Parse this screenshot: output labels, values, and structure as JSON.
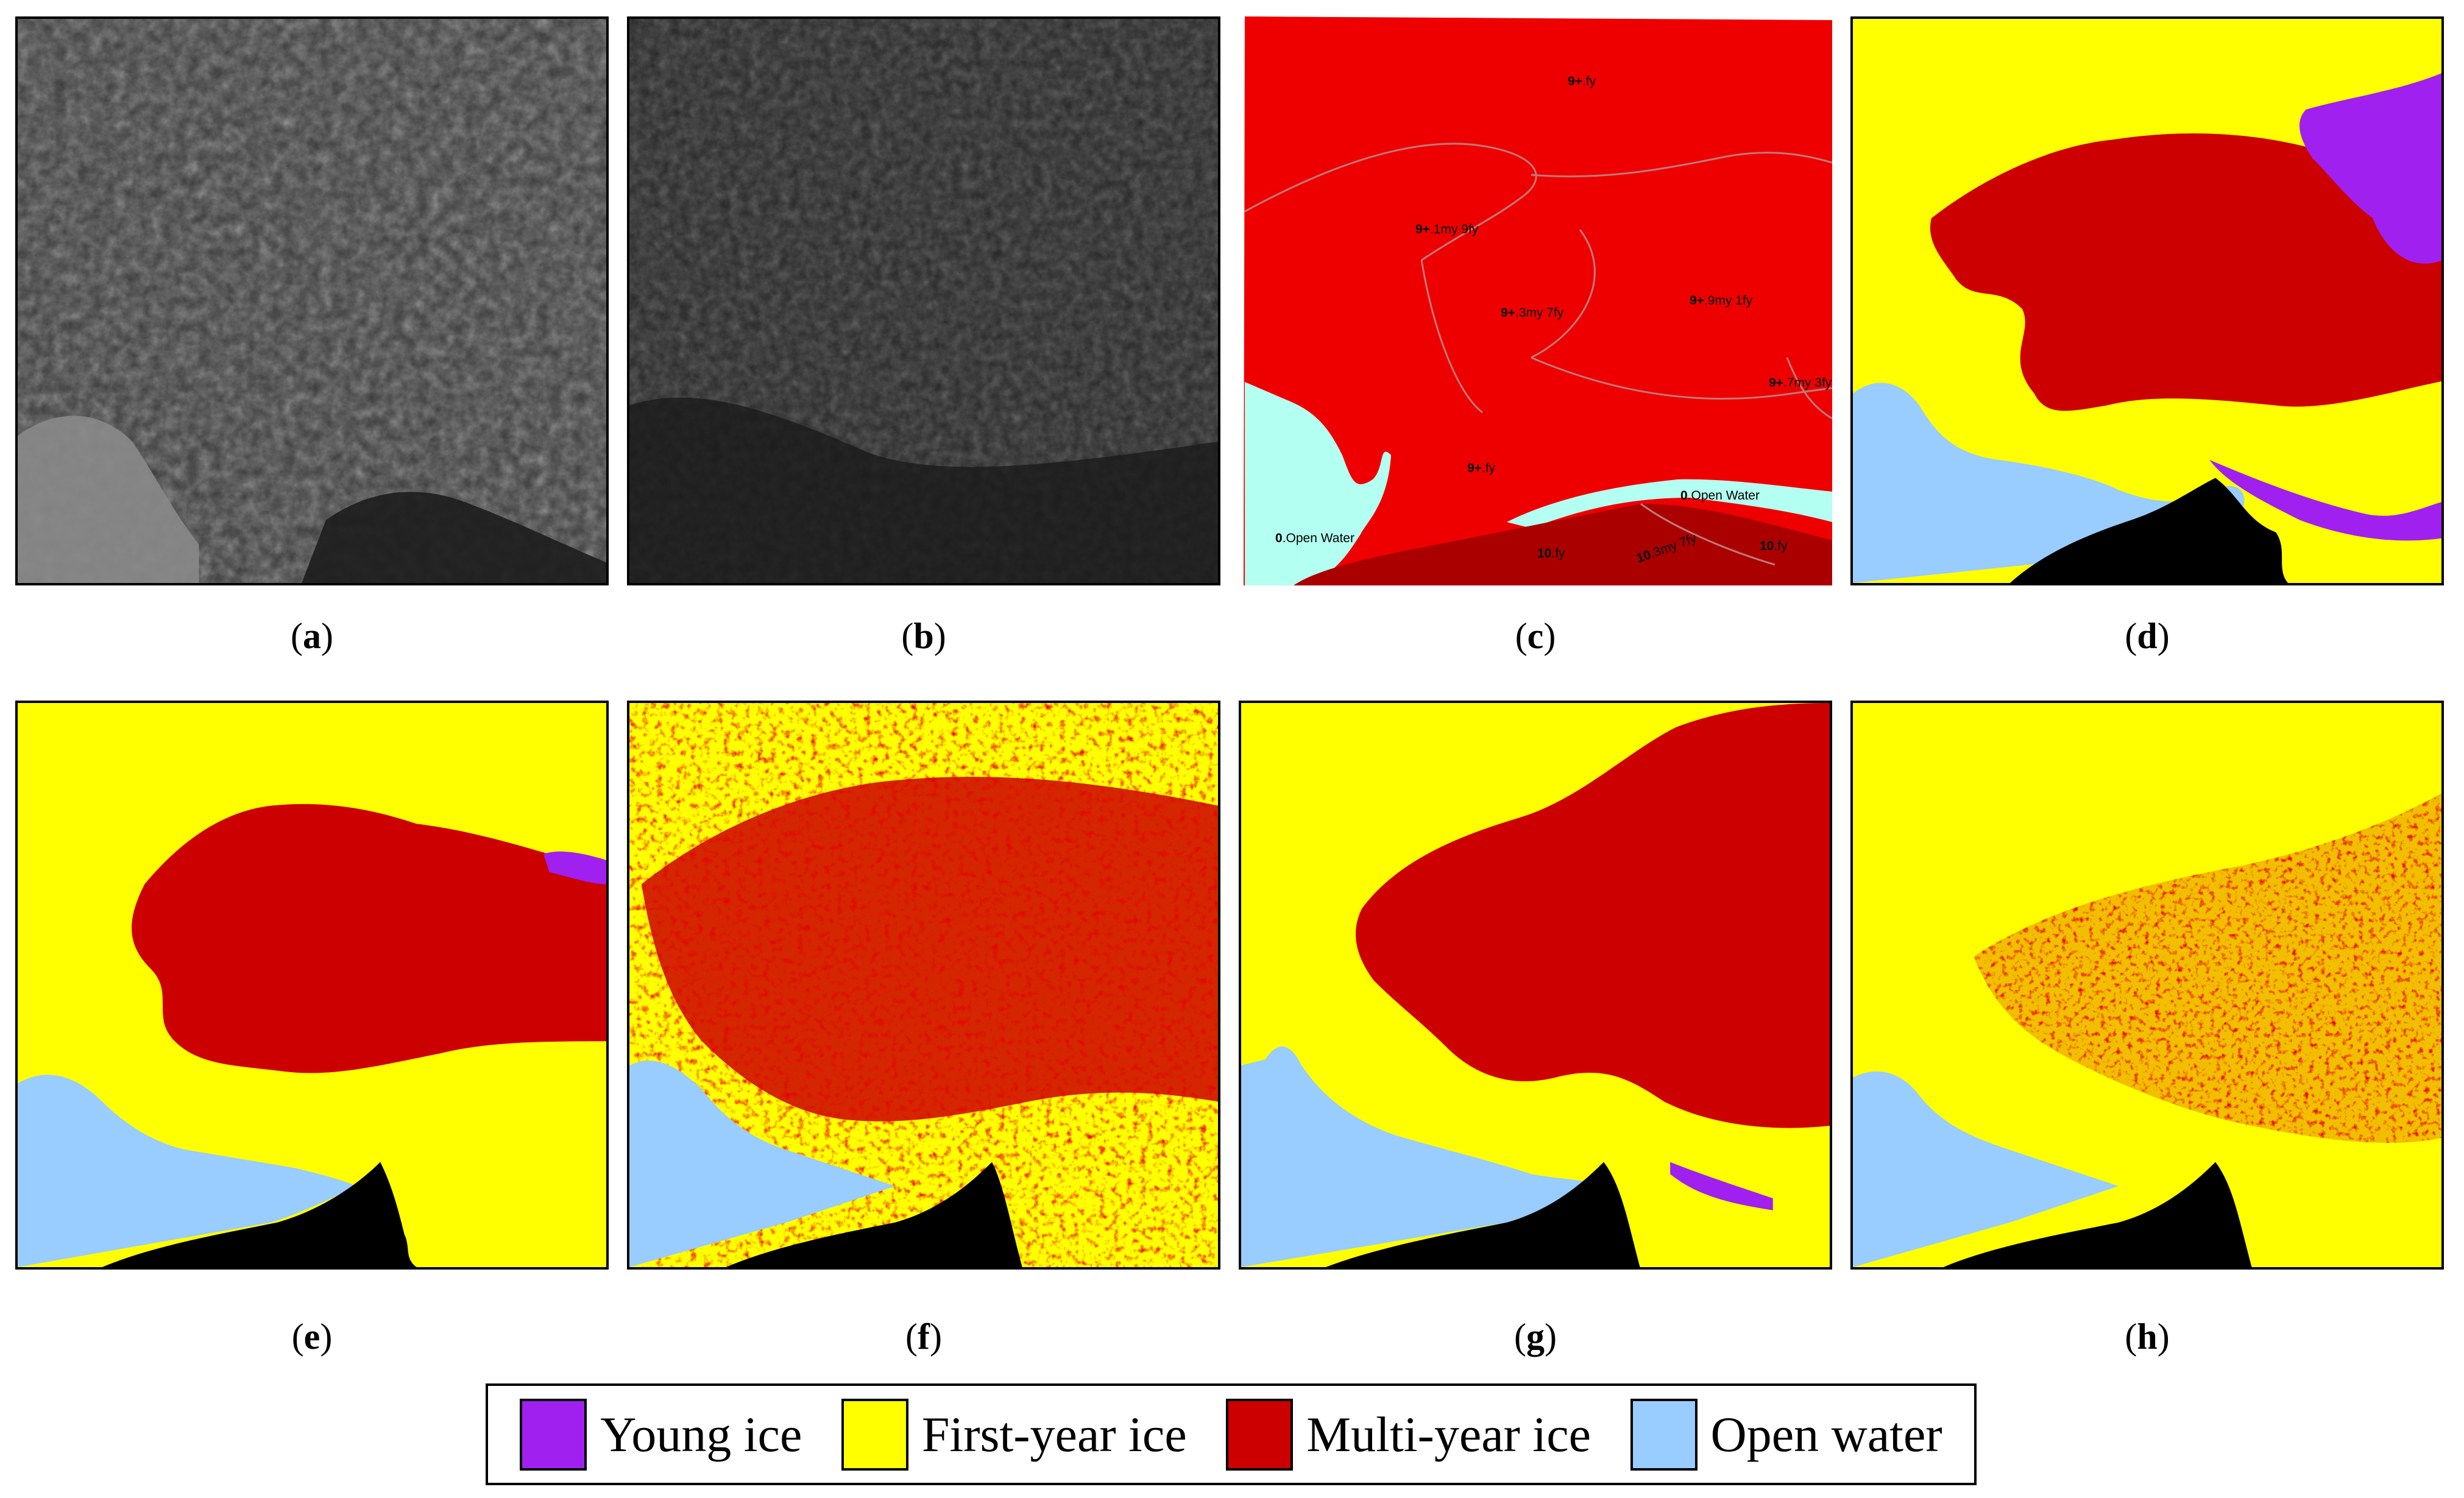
{
  "colors": {
    "young_ice": "#a020f0",
    "first_year_ice": "#ffff00",
    "multi_year_ice": "#cc0000",
    "open_water": "#99ccff",
    "land": "#000000",
    "ice_chart_red": "#ee0000",
    "ice_chart_dark": "#aa0000",
    "ice_chart_water": "#b3fff2"
  },
  "panels": [
    {
      "caption": "a"
    },
    {
      "caption": "b"
    },
    {
      "caption": "c",
      "labels": [
        {
          "code": "9+",
          "text": ".fy"
        },
        {
          "code": "9+",
          "text": ".1my 9fy"
        },
        {
          "code": "9+",
          "text": ".3my 7fy"
        },
        {
          "code": "9+",
          "text": ".9my 1fy"
        },
        {
          "code": "9+",
          "text": ".7my 3fy"
        },
        {
          "code": "9+",
          "text": ".fy"
        },
        {
          "code": "0",
          "text": ".Open Water"
        },
        {
          "code": "0",
          "text": ".Open Water"
        },
        {
          "code": "10",
          "text": ".fy"
        },
        {
          "code": "10",
          "text": ".3my 7fy"
        },
        {
          "code": "10",
          "text": ".fy"
        }
      ]
    },
    {
      "caption": "d"
    },
    {
      "caption": "e"
    },
    {
      "caption": "f"
    },
    {
      "caption": "g"
    },
    {
      "caption": "h"
    }
  ],
  "legend": {
    "items": [
      {
        "label": "Young ice",
        "color": "#a020f0"
      },
      {
        "label": "First-year ice",
        "color": "#ffff00"
      },
      {
        "label": "Multi-year ice",
        "color": "#cc0000"
      },
      {
        "label": "Open water",
        "color": "#99ccff"
      }
    ]
  }
}
